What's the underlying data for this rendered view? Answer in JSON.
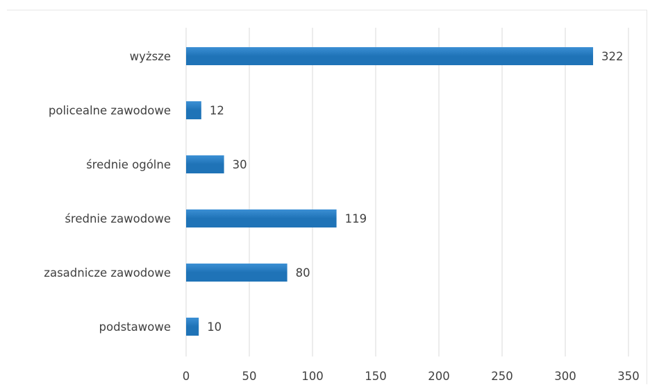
{
  "top_strip": {
    "left_text": "",
    "mid_text": ""
  },
  "chart_data": {
    "type": "bar",
    "orientation": "horizontal",
    "categories": [
      "wyższe",
      "policealne zawodowe",
      "średnie ogólne",
      "średnie zawodowe",
      "zasadnicze zawodowe",
      "podstawowe"
    ],
    "values": [
      322,
      12,
      30,
      119,
      80,
      10
    ],
    "xlim": [
      0,
      350
    ],
    "xticks": [
      0,
      50,
      100,
      150,
      200,
      250,
      300,
      350
    ],
    "grid": "vertical",
    "legend": "none",
    "bar_color": "#1f73b7",
    "bar_edge_color": "#3b8fd4",
    "grid_color": "#d9d9d9",
    "text_color": "#404040",
    "title": "",
    "xlabel": "",
    "ylabel": ""
  }
}
